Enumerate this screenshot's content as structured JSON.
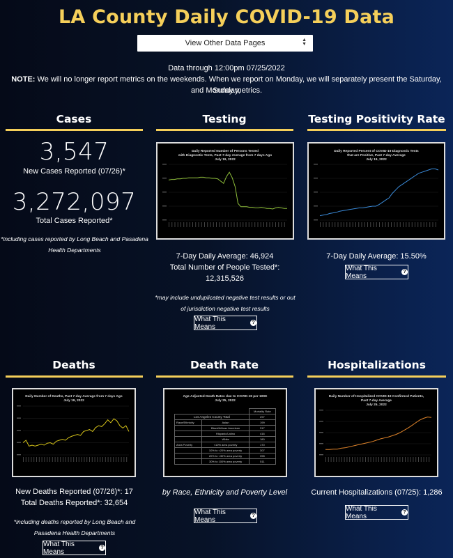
{
  "header": {
    "title": "LA County Daily COVID-19 Data",
    "select_label": "View Other Data Pages",
    "data_through": "Data through 12:00pm 07/25/2022",
    "note_prefix": "NOTE:",
    "note_line1": " We will no longer report metrics on the weekends. When we report on Monday, we will separately present the Saturday, Sunday,",
    "note_line2": "and Monday metrics."
  },
  "colors": {
    "accent": "#f5cf5a",
    "chart_line_testing": "#8fbf3a",
    "chart_line_positivity": "#3a8ad8",
    "chart_line_deaths": "#d6c319",
    "chart_line_hosp": "#e0842a"
  },
  "button_label": "What This Means",
  "cases": {
    "title": "Cases",
    "new_cases": "3,547",
    "new_cases_label": "New Cases Reported (07/26)*",
    "total_cases": "3,272,097",
    "total_cases_label": "Total Cases Reported*",
    "footnote_1": "*including cases reported by Long Beach and Pasadena",
    "footnote_2": "Health Departments"
  },
  "testing": {
    "title": "Testing",
    "chart_title_1": "Daily Reported Number of Persons Tested",
    "chart_title_2": "with Diagnostic Tests, Past 7-day Average from 7 days Ago",
    "chart_title_3": "July 19, 2022",
    "avg": "7-Day Daily Average: 46,924",
    "total_label": "Total Number of People Tested*:",
    "total": "12,315,526",
    "footnote_1": "*may include unduplicated negative test results or out",
    "footnote_2": "of jurisdiction negative test results"
  },
  "positivity": {
    "title": "Testing Positivity Rate",
    "chart_title_1": "Daily Reported Percent of COVID-19 Diagnostic Tests",
    "chart_title_2": "that are Positive, Past 7-day Average",
    "chart_title_3": "July 19, 2022",
    "avg": "7-Day Daily Average: 15.50%"
  },
  "deaths": {
    "title": "Deaths",
    "chart_title_1": "Daily Number of Deaths, Past 7-day Average from 7 days Ago",
    "chart_title_2": "July 19, 2022",
    "new_deaths": "New Deaths Reported (07/26)*: 17",
    "total_deaths": "Total Deaths Reported*: 32,654",
    "footnote_1": "*including deaths reported by Long Beach and",
    "footnote_2": "Pasadena Health Departments"
  },
  "death_rate": {
    "title": "Death Rate",
    "chart_title_1": "Age-Adjusted Death Rates due to COVID-19 per 100K",
    "chart_title_2": "July 25, 2022",
    "table_header": "Mortality Rate",
    "rows": [
      [
        "Los Angeles County Total",
        "",
        "297"
      ],
      [
        "Race/Ethnicity",
        "Asian",
        "199"
      ],
      [
        "",
        "Black/African American",
        "317"
      ],
      [
        "",
        "Hispanic/Latino",
        "416"
      ],
      [
        "",
        "White",
        "180"
      ],
      [
        "Area Poverty",
        "<10% area poverty",
        "170"
      ],
      [
        "",
        "10% to <20% area poverty",
        "307"
      ],
      [
        "",
        "20% to <30% area poverty",
        "398"
      ],
      [
        "",
        "30% to 100% area poverty",
        "511"
      ]
    ],
    "caption": "by Race, Ethnicity and Poverty Level"
  },
  "hospitalizations": {
    "title": "Hospitalizations",
    "chart_title_1": "Daily Number of Hospitalized COVID-19 Confirmed Patients,",
    "chart_title_2": "Past 7-day Average",
    "chart_title_3": "July 25, 2022",
    "current": "Current Hospitalizations (07/25): 1,286"
  },
  "chart_data": [
    {
      "type": "line",
      "series": [
        {
          "values": [
            0.72,
            0.73,
            0.73,
            0.74,
            0.74,
            0.75,
            0.75,
            0.76,
            0.76,
            0.76,
            0.76,
            0.77,
            0.77,
            0.76,
            0.76,
            0.75,
            0.75,
            0.74,
            0.7,
            0.66,
            0.78,
            0.86,
            0.76,
            0.6,
            0.3,
            0.24,
            0.24,
            0.24,
            0.23,
            0.23,
            0.22,
            0.22,
            0.23,
            0.22,
            0.21,
            0.21,
            0.2,
            0.22,
            0.23,
            0.22,
            0.21,
            0.21
          ]
        }
      ]
    },
    {
      "type": "line",
      "series": [
        {
          "values": [
            0.08,
            0.09,
            0.1,
            0.12,
            0.13,
            0.14,
            0.16,
            0.17,
            0.18,
            0.19,
            0.2,
            0.21,
            0.22,
            0.22,
            0.23,
            0.24,
            0.25,
            0.25,
            0.28,
            0.32,
            0.36,
            0.4,
            0.48,
            0.54,
            0.6,
            0.64,
            0.68,
            0.72,
            0.76,
            0.8,
            0.84,
            0.86,
            0.88,
            0.9,
            0.92,
            0.92,
            0.9
          ]
        }
      ]
    },
    {
      "type": "line",
      "series": [
        {
          "values": [
            0.25,
            0.3,
            0.18,
            0.2,
            0.18,
            0.2,
            0.22,
            0.2,
            0.24,
            0.25,
            0.22,
            0.28,
            0.3,
            0.32,
            0.3,
            0.35,
            0.38,
            0.4,
            0.42,
            0.4,
            0.48,
            0.5,
            0.52,
            0.48,
            0.56,
            0.6,
            0.58,
            0.64,
            0.72,
            0.66,
            0.74,
            0.7,
            0.6,
            0.55,
            0.6,
            0.48
          ]
        }
      ]
    },
    {
      "type": "line",
      "series": [
        {
          "values": [
            0.12,
            0.12,
            0.13,
            0.13,
            0.15,
            0.16,
            0.18,
            0.2,
            0.22,
            0.24,
            0.26,
            0.28,
            0.3,
            0.33,
            0.36,
            0.38,
            0.4,
            0.43,
            0.46,
            0.5,
            0.55,
            0.6,
            0.66,
            0.72,
            0.78,
            0.82,
            0.85,
            0.84
          ]
        }
      ]
    }
  ]
}
